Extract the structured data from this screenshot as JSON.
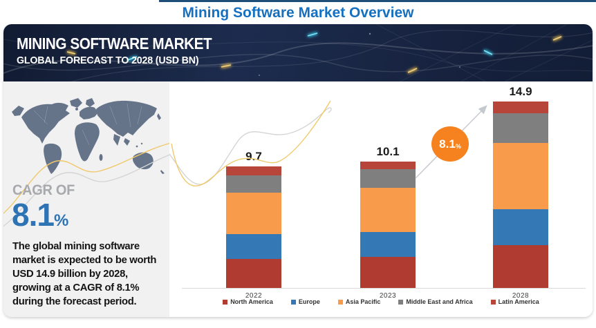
{
  "page_title": "Mining Software Market Overview",
  "banner": {
    "title": "MINING SOFTWARE MARKET",
    "subtitle": "GLOBAL FORECAST TO 2028 (USD BN)"
  },
  "left_panel": {
    "cagr_label": "CAGR OF",
    "cagr_value": "8.1",
    "cagr_unit": "%",
    "description": "The global mining software market is expected to be worth USD 14.9 billion by 2028, growing at a CAGR of 8.1% during the forecast period."
  },
  "badge": {
    "value": "8.1",
    "unit": "%"
  },
  "colors": {
    "title_blue": "#1670C0",
    "cagr_blue": "#2E74B5",
    "badge_orange": "#F5821F",
    "banner_navy": "#16223E",
    "panel_gray": "#F1F1F2",
    "map_slate": "#66748A",
    "axis_gray": "#D9D9D9"
  },
  "chart_data": {
    "type": "bar",
    "stacked": true,
    "title": "Mining Software Market, Global Forecast to 2028 (USD BN)",
    "categories": [
      "2022",
      "2023",
      "2028"
    ],
    "totals": [
      9.7,
      10.1,
      14.9
    ],
    "series": [
      {
        "name": "North America",
        "color": "#AF3B31",
        "values": [
          2.3,
          2.5,
          3.4
        ]
      },
      {
        "name": "Europe",
        "color": "#3478B6",
        "values": [
          2.0,
          2.0,
          2.9
        ]
      },
      {
        "name": "Asia Pacific",
        "color": "#F89B4B",
        "values": [
          3.3,
          3.5,
          5.3
        ]
      },
      {
        "name": "Middle East and Africa",
        "color": "#7F7F7F",
        "values": [
          1.4,
          1.5,
          2.4
        ]
      },
      {
        "name": "Latin America",
        "color": "#B8453A",
        "values": [
          0.7,
          0.6,
          0.9
        ]
      }
    ],
    "annotation": "8.1% CAGR between 2023 and 2028",
    "xlabel": "",
    "ylabel": "USD BN",
    "ylim": [
      0,
      16.5
    ],
    "grid": false,
    "legend_position": "bottom"
  }
}
